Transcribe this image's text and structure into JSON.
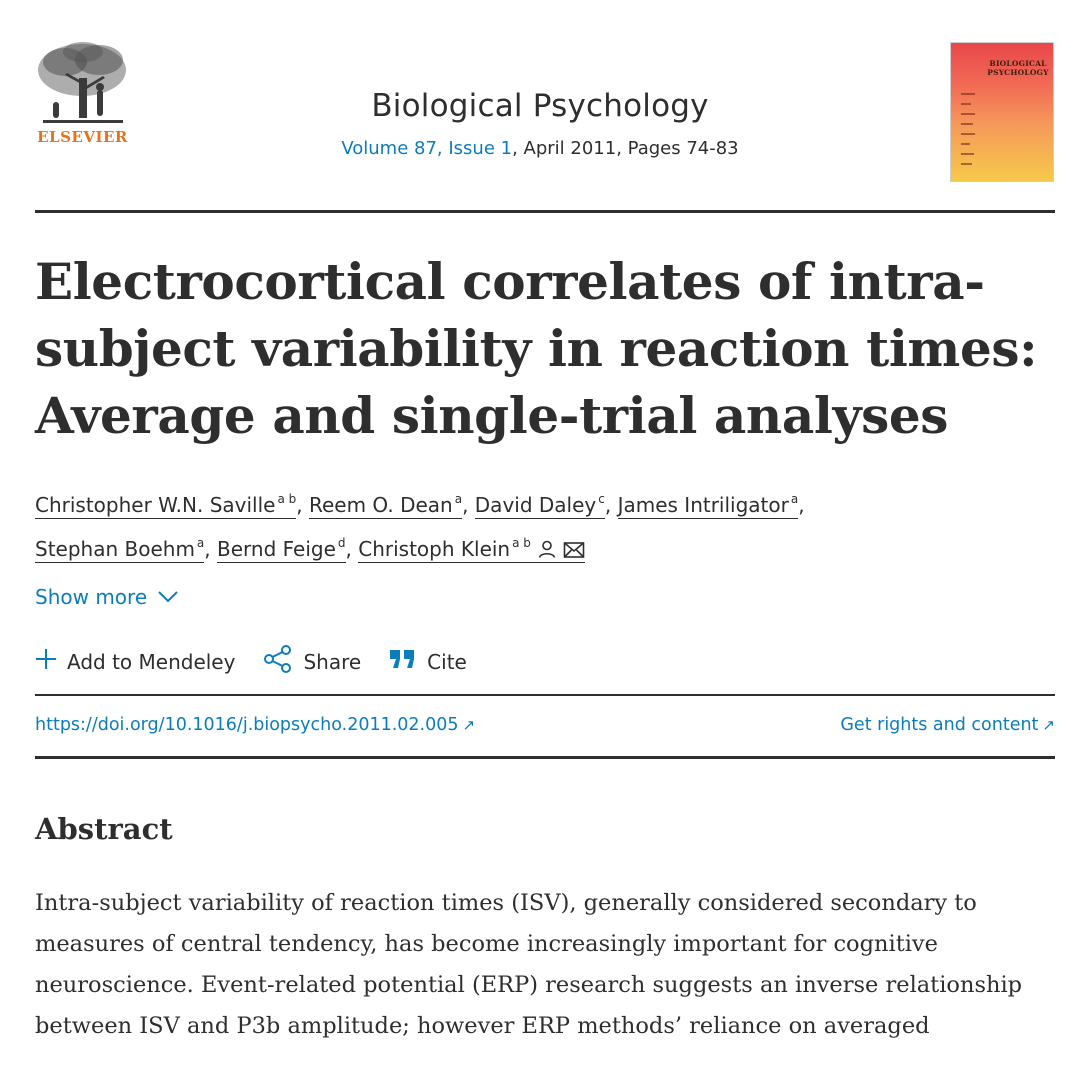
{
  "header": {
    "publisher": "ELSEVIER",
    "journal_title": "Biological Psychology",
    "volume_issue_link": "Volume 87, Issue 1",
    "issue_rest": ", April 2011, Pages 74-83",
    "cover_title": "BIOLOGICAL PSYCHOLOGY"
  },
  "article": {
    "title": "Electrocortical correlates of intra-subject variability in reaction times: Average and single-trial analyses",
    "authors": [
      {
        "name": "Christopher W.N. Saville",
        "aff": "a b"
      },
      {
        "name": "Reem O. Dean",
        "aff": "a"
      },
      {
        "name": "David Daley",
        "aff": "c"
      },
      {
        "name": "James Intriligator",
        "aff": "a"
      },
      {
        "name": "Stephan Boehm",
        "aff": "a"
      },
      {
        "name": "Bernd Feige",
        "aff": "d"
      },
      {
        "name": "Christoph Klein",
        "aff": "a b"
      }
    ],
    "show_more": "Show more",
    "actions": {
      "mendeley": "Add to Mendeley",
      "share": "Share",
      "cite": "Cite"
    },
    "doi": "https://doi.org/10.1016/j.biopsycho.2011.02.005",
    "rights": "Get rights and content",
    "external_arrow": "↗"
  },
  "abstract": {
    "heading": "Abstract",
    "text": "Intra-subject variability of reaction times (ISV), generally considered secondary to measures of central tendency, has become increasingly important for cognitive neuroscience. Event-related potential (ERP) research suggests an inverse relationship between ISV and P3b amplitude; however ERP methods’ reliance on averaged"
  },
  "colors": {
    "link": "#0c7dbb",
    "text": "#2e2e2e",
    "publisher_orange": "#e9711c"
  }
}
